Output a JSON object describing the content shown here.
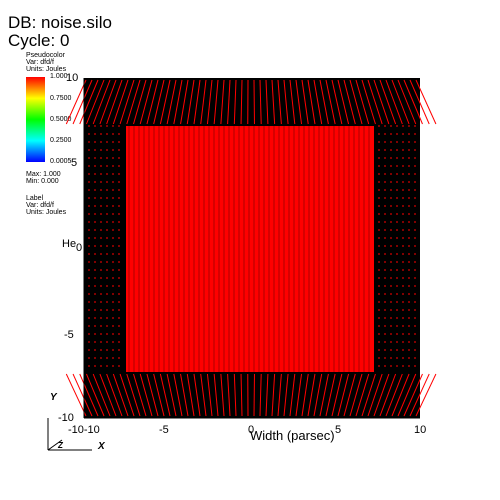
{
  "header": {
    "db_label": "DB: noise.silo",
    "cycle_label": "Cycle: 0"
  },
  "legend": {
    "plot_type": "Pseudocolor",
    "var": "Var: dfd/f",
    "units": "Units: Joules",
    "ticks": [
      "1.000",
      "0.7500",
      "0.5000",
      "0.2500",
      "0.0005"
    ],
    "max": "Max: 1.000",
    "min": "Min: 0.000"
  },
  "label_legend": {
    "title": "Label",
    "var": "Var: dfd/f",
    "units": "Units: Joules"
  },
  "axes": {
    "xlabel": "Width (parsec)",
    "ylabel": "He",
    "x_ticks": [
      "-10",
      "-5",
      "0",
      "5",
      "10"
    ],
    "y_ticks": [
      "10",
      "5",
      "0",
      "-5",
      "-10"
    ],
    "y_bottom_overlap": "-10-10",
    "triad": {
      "y": "Y",
      "x": "X",
      "z": "Z"
    }
  },
  "chart_data": {
    "type": "heatmap",
    "xlabel": "Width (parsec)",
    "ylabel": "He",
    "xlim": [
      -10,
      10
    ],
    "ylim": [
      -10,
      10
    ],
    "colormap_range": [
      0.0,
      1.0
    ],
    "inner_red_region": {
      "x": [
        -7.5,
        7.5
      ],
      "y": [
        -7.5,
        7.5
      ]
    }
  },
  "colors": {
    "red": "#ff0000",
    "black": "#000000",
    "background": "#ffffff"
  }
}
